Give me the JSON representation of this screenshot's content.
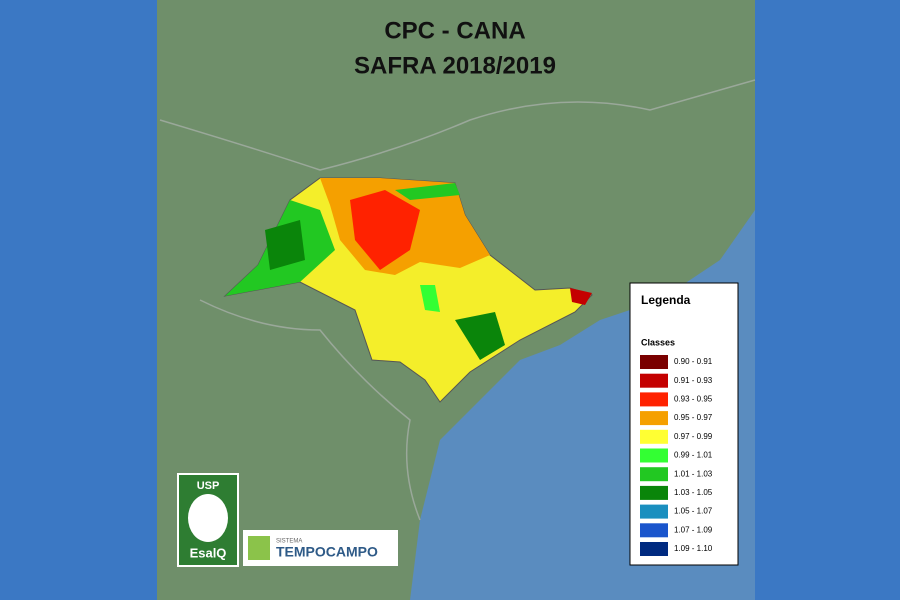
{
  "title": {
    "line1": "CPC - CANA",
    "line2": "SAFRA 2018/2019"
  },
  "legend": {
    "title": "Legenda",
    "subtitle": "Classes",
    "items": [
      {
        "label": "0.90 - 0.91",
        "color": "#7a0000"
      },
      {
        "label": "0.91 - 0.93",
        "color": "#c40000"
      },
      {
        "label": "0.93 - 0.95",
        "color": "#ff2200"
      },
      {
        "label": "0.95 - 0.97",
        "color": "#f5a000"
      },
      {
        "label": "0.97 - 0.99",
        "color": "#ffff33"
      },
      {
        "label": "0.99 - 1.01",
        "color": "#33ff33"
      },
      {
        "label": "1.01 - 1.03",
        "color": "#22c822"
      },
      {
        "label": "1.03 - 1.05",
        "color": "#0a850a"
      },
      {
        "label": "1.05 - 1.07",
        "color": "#1a8fbf"
      },
      {
        "label": "1.07 - 1.09",
        "color": "#1a55cc"
      },
      {
        "label": "1.09 - 1.10",
        "color": "#002a80"
      }
    ]
  },
  "logos": {
    "usp": "USP",
    "esalq": "EsalQ",
    "sistema": "SISTEMA",
    "tempocampo": "TEMPOCAMPO"
  }
}
